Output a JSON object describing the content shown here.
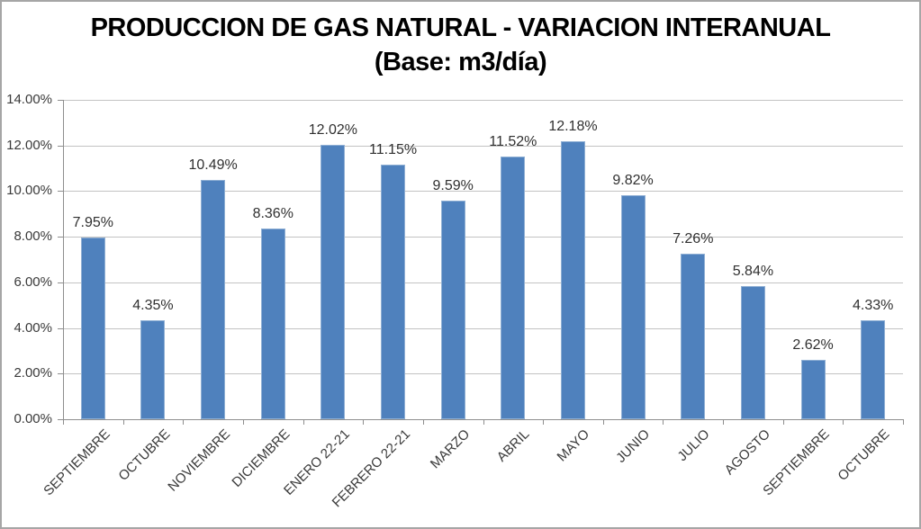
{
  "title": {
    "line1": "PRODUCCION DE GAS NATURAL - VARIACION INTERANUAL",
    "line2": "(Base: m3/día)"
  },
  "chart_data": {
    "type": "bar",
    "title": "PRODUCCION DE GAS NATURAL - VARIACION INTERANUAL (Base: m3/día)",
    "categories": [
      "SEPTIEMBRE",
      "OCTUBRE",
      "NOVIEMBRE",
      "DICIEMBRE",
      "ENERO 22-21",
      "FEBRERO 22-21",
      "MARZO",
      "ABRIL",
      "MAYO",
      "JUNIO",
      "JULIO",
      "AGOSTO",
      "SEPTIEMBRE",
      "OCTUBRE"
    ],
    "values": [
      7.95,
      4.35,
      10.49,
      8.36,
      12.02,
      11.15,
      9.59,
      11.52,
      12.18,
      9.82,
      7.26,
      5.84,
      2.62,
      4.33
    ],
    "data_labels": [
      "7.95%",
      "4.35%",
      "10.49%",
      "8.36%",
      "12.02%",
      "11.15%",
      "9.59%",
      "11.52%",
      "12.18%",
      "9.82%",
      "7.26%",
      "5.84%",
      "2.62%",
      "4.33%"
    ],
    "yticks": [
      "0.00%",
      "2.00%",
      "4.00%",
      "6.00%",
      "8.00%",
      "10.00%",
      "12.00%",
      "14.00%"
    ],
    "xlabel": "",
    "ylabel": "",
    "ylim": [
      0,
      14
    ],
    "ytick_step": 2,
    "grid": true,
    "legend": false,
    "bar_color": "#4F81BD",
    "bar_border_color": "#8FAFD4",
    "gridline_color": "#C3C3C3",
    "axis_color": "#8E8E8E",
    "tick_label_color": "#3A3A3A",
    "data_label_color": "#303030",
    "frame_border_color": "#A6A6A6"
  }
}
